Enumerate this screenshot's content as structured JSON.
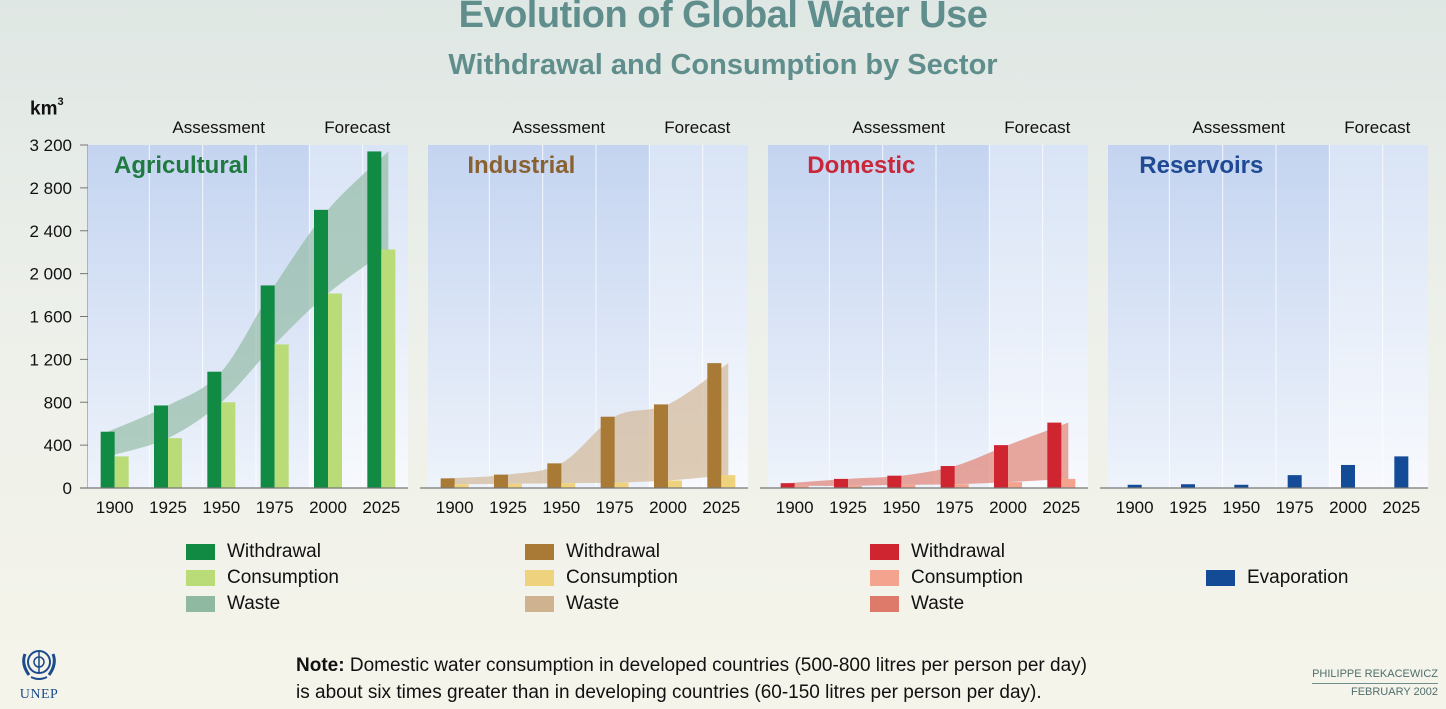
{
  "header": {
    "title": "Evolution of Global Water Use",
    "subtitle": "Withdrawal and Consumption by Sector",
    "unit_label": "km",
    "unit_power": "3"
  },
  "chart_data": [
    {
      "type": "bar",
      "title": "Agricultural",
      "title_color": "#1f7a3f",
      "period_labels": [
        "Assessment",
        "Forecast"
      ],
      "categories": [
        "1900",
        "1925",
        "1950",
        "1975",
        "2000",
        "2025"
      ],
      "ylim": [
        0,
        3200
      ],
      "yticks": [
        "0",
        "400",
        "800",
        "1 200",
        "1 600",
        "2 000",
        "2 400",
        "2 800",
        "3 200"
      ],
      "series": [
        {
          "name": "Withdrawal",
          "color": "#118a44",
          "values": [
            525,
            770,
            1085,
            1890,
            2595,
            3140
          ]
        },
        {
          "name": "Consumption",
          "color": "#b9dc78",
          "values": [
            295,
            465,
            800,
            1340,
            1815,
            2225
          ]
        }
      ],
      "band": {
        "name": "Waste",
        "color": "#8fb9a0"
      }
    },
    {
      "type": "bar",
      "title": "Industrial",
      "title_color": "#8a6232",
      "period_labels": [
        "Assessment",
        "Forecast"
      ],
      "categories": [
        "1900",
        "1925",
        "1950",
        "1975",
        "2000",
        "2025"
      ],
      "ylim": [
        0,
        3200
      ],
      "series": [
        {
          "name": "Withdrawal",
          "color": "#a87a36",
          "values": [
            90,
            125,
            230,
            665,
            780,
            1165
          ]
        },
        {
          "name": "Consumption",
          "color": "#efd27e",
          "values": [
            35,
            40,
            45,
            50,
            70,
            120
          ]
        }
      ],
      "band": {
        "name": "Waste",
        "color": "#cfb28f"
      }
    },
    {
      "type": "bar",
      "title": "Domestic",
      "title_color": "#c9283a",
      "period_labels": [
        "Assessment",
        "Forecast"
      ],
      "categories": [
        "1900",
        "1925",
        "1950",
        "1975",
        "2000",
        "2025"
      ],
      "ylim": [
        0,
        3200
      ],
      "series": [
        {
          "name": "Withdrawal",
          "color": "#cf2530",
          "values": [
            45,
            85,
            115,
            205,
            400,
            610
          ]
        },
        {
          "name": "Consumption",
          "color": "#f4a38e",
          "values": [
            20,
            20,
            30,
            35,
            55,
            85
          ]
        }
      ],
      "band": {
        "name": "Waste",
        "color": "#de7a6a"
      }
    },
    {
      "type": "bar",
      "title": "Reservoirs",
      "title_color": "#1f4a93",
      "period_labels": [
        "Assessment",
        "Forecast"
      ],
      "categories": [
        "1900",
        "1925",
        "1950",
        "1975",
        "2000",
        "2025"
      ],
      "ylim": [
        0,
        3200
      ],
      "series": [
        {
          "name": "Evaporation",
          "color": "#134b96",
          "values": [
            30,
            35,
            30,
            120,
            215,
            295
          ]
        }
      ]
    }
  ],
  "legends": [
    [
      {
        "label": "Withdrawal",
        "color": "#118a44"
      },
      {
        "label": "Consumption",
        "color": "#b9dc78"
      },
      {
        "label": "Waste",
        "color": "#8fb9a0"
      }
    ],
    [
      {
        "label": "Withdrawal",
        "color": "#a87a36"
      },
      {
        "label": "Consumption",
        "color": "#efd27e"
      },
      {
        "label": "Waste",
        "color": "#cfb28f"
      }
    ],
    [
      {
        "label": "Withdrawal",
        "color": "#cf2530"
      },
      {
        "label": "Consumption",
        "color": "#f4a38e"
      },
      {
        "label": "Waste",
        "color": "#de7a6a"
      }
    ],
    [
      {
        "label": "Evaporation",
        "color": "#134b96"
      }
    ]
  ],
  "note": {
    "bold": "Note:",
    "line1": "Domestic water consumption in developed countries (500-800 litres per person per day)",
    "line2": "is about six times greater than in developing countries (60-150 litres per person per day)."
  },
  "credit": {
    "author": "PHILIPPE REKACEWICZ",
    "date": "FEBRUARY 2002"
  },
  "logo": {
    "text": "UNEP",
    "icon": "un-emblem-icon"
  }
}
